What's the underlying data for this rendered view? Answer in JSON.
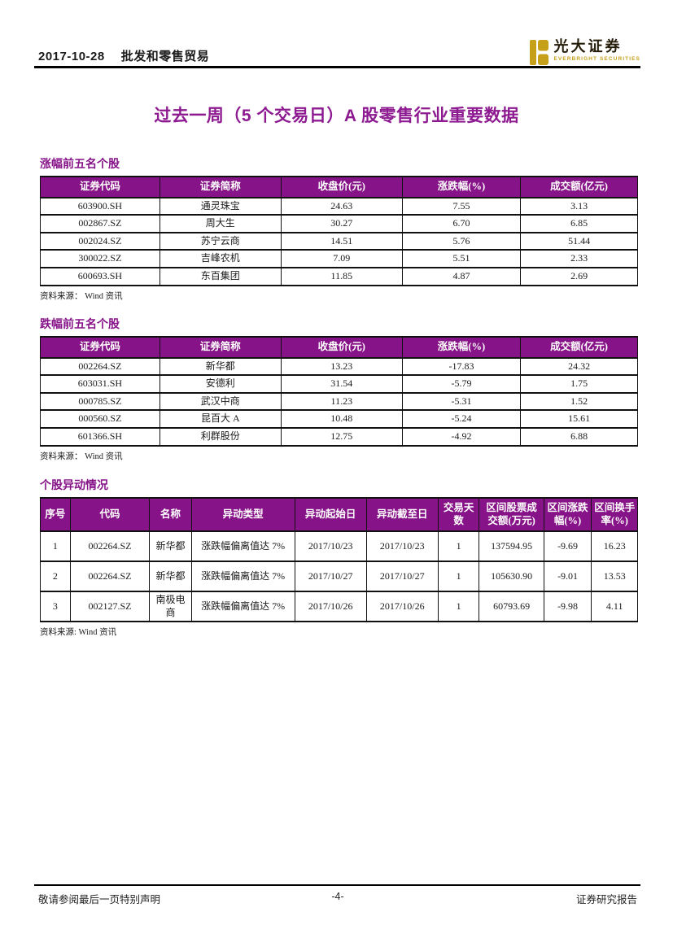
{
  "colors": {
    "accent": "#871388",
    "title": "#8d1a90",
    "logo-gold": "#c6a019"
  },
  "header": {
    "date": "2017-10-28",
    "category": "批发和零售贸易",
    "brand_cn": "光大证券",
    "brand_en": "EVERBRIGHT SECURITIES"
  },
  "title": "过去一周（5 个交易日）A 股零售行业重要数据",
  "tables": [
    {
      "caption": "涨幅前五名个股",
      "headers": [
        "证券代码",
        "证券简称",
        "收盘价(元)",
        "涨跌幅(%)",
        "成交额(亿元)"
      ],
      "rows": [
        [
          "603900.SH",
          "通灵珠宝",
          "24.63",
          "7.55",
          "3.13"
        ],
        [
          "002867.SZ",
          "周大生",
          "30.27",
          "6.70",
          "6.85"
        ],
        [
          "002024.SZ",
          "苏宁云商",
          "14.51",
          "5.76",
          "51.44"
        ],
        [
          "300022.SZ",
          "吉峰农机",
          "7.09",
          "5.51",
          "2.33"
        ],
        [
          "600693.SH",
          "东百集团",
          "11.85",
          "4.87",
          "2.69"
        ]
      ],
      "source": "资料来源： Wind 资讯"
    },
    {
      "caption": "跌幅前五名个股",
      "headers": [
        "证券代码",
        "证券简称",
        "收盘价(元)",
        "涨跌幅(%)",
        "成交额(亿元)"
      ],
      "rows": [
        [
          "002264.SZ",
          "新华都",
          "13.23",
          "-17.83",
          "24.32"
        ],
        [
          "603031.SH",
          "安德利",
          "31.54",
          "-5.79",
          "1.75"
        ],
        [
          "000785.SZ",
          "武汉中商",
          "11.23",
          "-5.31",
          "1.52"
        ],
        [
          "000560.SZ",
          "昆百大 A",
          "10.48",
          "-5.24",
          "15.61"
        ],
        [
          "601366.SH",
          "利群股份",
          "12.75",
          "-4.92",
          "6.88"
        ]
      ],
      "source": "资料来源： Wind 资讯"
    },
    {
      "caption": "个股异动情况",
      "headers": [
        "序号",
        "代码",
        "名称",
        "异动类型",
        "异动起始日",
        "异动截至日",
        "交易天数",
        "区间股票成交额(万元)",
        "区间涨跌幅(%)",
        "区间换手率(%)"
      ],
      "rows": [
        [
          "1",
          "002264.SZ",
          "新华都",
          "涨跌幅偏离值达 7%",
          "2017/10/23",
          "2017/10/23",
          "1",
          "137594.95",
          "-9.69",
          "16.23"
        ],
        [
          "2",
          "002264.SZ",
          "新华都",
          "涨跌幅偏离值达 7%",
          "2017/10/27",
          "2017/10/27",
          "1",
          "105630.90",
          "-9.01",
          "13.53"
        ],
        [
          "3",
          "002127.SZ",
          "南极电商",
          "涨跌幅偏离值达 7%",
          "2017/10/26",
          "2017/10/26",
          "1",
          "60793.69",
          "-9.98",
          "4.11"
        ]
      ],
      "source": "资料来源: Wind 资讯"
    }
  ],
  "footer": {
    "left": "敬请参阅最后一页特别声明",
    "page_number": "-4-",
    "right": "证券研究报告"
  }
}
